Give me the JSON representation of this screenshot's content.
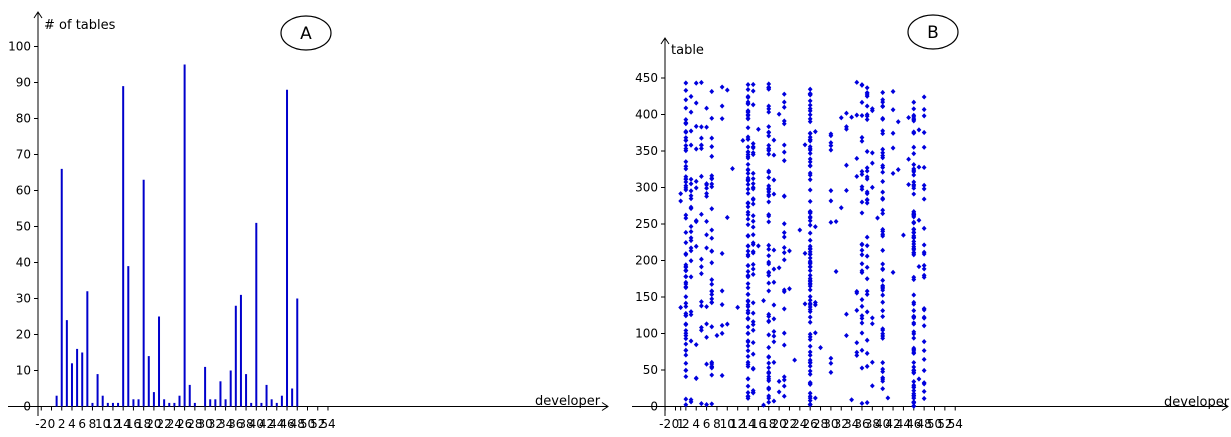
{
  "chart_data": [
    {
      "type": "bar",
      "panel_label": "A",
      "xlabel": "developer",
      "ylabel": "# of tables",
      "xlim": [
        -2,
        55
      ],
      "ylim": [
        0,
        100
      ],
      "x_ticks": [
        -2,
        0,
        2,
        4,
        6,
        8,
        10,
        12,
        14,
        16,
        18,
        20,
        22,
        24,
        26,
        28,
        30,
        32,
        34,
        36,
        38,
        40,
        42,
        44,
        46,
        48,
        50,
        52,
        54
      ],
      "y_ticks": [
        0,
        10,
        20,
        30,
        40,
        50,
        60,
        70,
        80,
        90,
        100
      ],
      "bar_color": "#0000cc",
      "x": [
        1,
        2,
        3,
        4,
        5,
        6,
        7,
        8,
        9,
        10,
        11,
        12,
        13,
        14,
        15,
        16,
        17,
        18,
        19,
        20,
        21,
        22,
        23,
        24,
        25,
        26,
        27,
        28,
        29,
        30,
        31,
        32,
        33,
        34,
        35,
        36,
        37,
        38,
        39,
        40,
        41,
        42,
        43,
        44,
        45,
        46,
        47,
        48
      ],
      "values": [
        3,
        66,
        24,
        12,
        16,
        15,
        32,
        1,
        9,
        3,
        1,
        1,
        1,
        89,
        39,
        2,
        2,
        63,
        14,
        4,
        25,
        2,
        1,
        1,
        3,
        95,
        6,
        1,
        0,
        11,
        2,
        2,
        7,
        2,
        10,
        28,
        31,
        9,
        1,
        51,
        1,
        6,
        2,
        1,
        3,
        88,
        5,
        30
      ]
    },
    {
      "type": "scatter",
      "panel_label": "B",
      "xlabel": "developer",
      "ylabel": "table",
      "xlim": [
        -2,
        55
      ],
      "ylim": [
        0,
        460
      ],
      "x_ticks": [
        -2,
        0,
        1,
        2,
        4,
        6,
        8,
        10,
        12,
        14,
        16,
        18,
        20,
        22,
        24,
        26,
        28,
        30,
        32,
        34,
        36,
        38,
        40,
        42,
        44,
        46,
        48,
        50,
        52,
        54
      ],
      "y_ticks": [
        0,
        50,
        100,
        150,
        200,
        250,
        300,
        350,
        400,
        450
      ],
      "point_color": "#0000dd",
      "developer_table_counts": [
        3,
        66,
        24,
        12,
        16,
        15,
        32,
        1,
        9,
        3,
        1,
        1,
        1,
        89,
        39,
        2,
        2,
        63,
        14,
        4,
        25,
        2,
        1,
        1,
        3,
        95,
        6,
        1,
        0,
        11,
        2,
        2,
        7,
        2,
        10,
        28,
        31,
        9,
        1,
        51,
        1,
        6,
        2,
        1,
        3,
        88,
        5,
        30
      ]
    }
  ],
  "panels": {
    "a_label": "A",
    "b_label": "B"
  }
}
